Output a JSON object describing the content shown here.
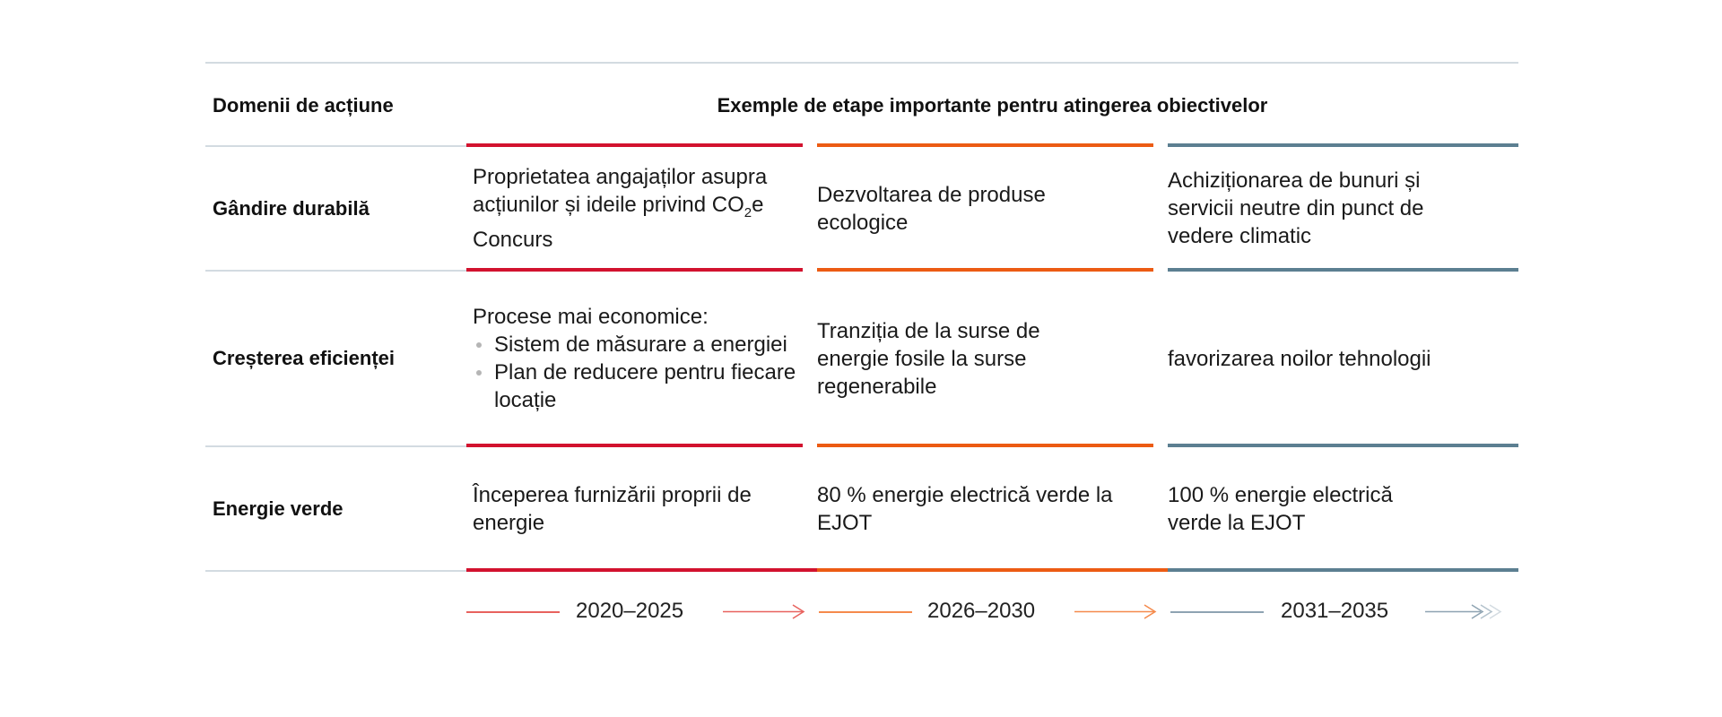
{
  "header": {
    "col_left": "Domenii de acțiune",
    "col_right": "Exemple de etape importante pentru atingerea obiectivelor"
  },
  "rows": [
    {
      "label": "Gândire durabilă",
      "cells": [
        {
          "pre": "Proprietatea angajaților asupra acțiunilor și ideile privind CO",
          "sub": "2",
          "post": "e Concurs"
        },
        {
          "text": "Dezvoltarea de produse ecologice"
        },
        {
          "text": "Achiziționarea de bunuri și servicii neutre din punct de vedere climatic"
        }
      ]
    },
    {
      "label": "Creșterea eficienței",
      "cells": [
        {
          "intro": "Procese mai economice:",
          "bullets": [
            "Sistem de măsurare a energiei",
            "Plan de reducere pentru fiecare locație"
          ]
        },
        {
          "text": "Tranziția de la surse de energie fosile la surse regenerabile"
        },
        {
          "text": "favorizarea noilor tehnologii"
        }
      ]
    },
    {
      "label": "Energie verde",
      "cells": [
        {
          "text": "Începerea furnizării proprii de energie"
        },
        {
          "text": "80 % energie electrică verde la EJOT"
        },
        {
          "text": "100 % energie electrică verde la EJOT"
        }
      ]
    }
  ],
  "periods": [
    "2020–2025",
    "2026–2030",
    "2031–2035"
  ],
  "colors": {
    "period1": "#d2122e",
    "period2": "#ec5b13",
    "period3": "#5c7f91",
    "divider": "#d3dbe1"
  }
}
